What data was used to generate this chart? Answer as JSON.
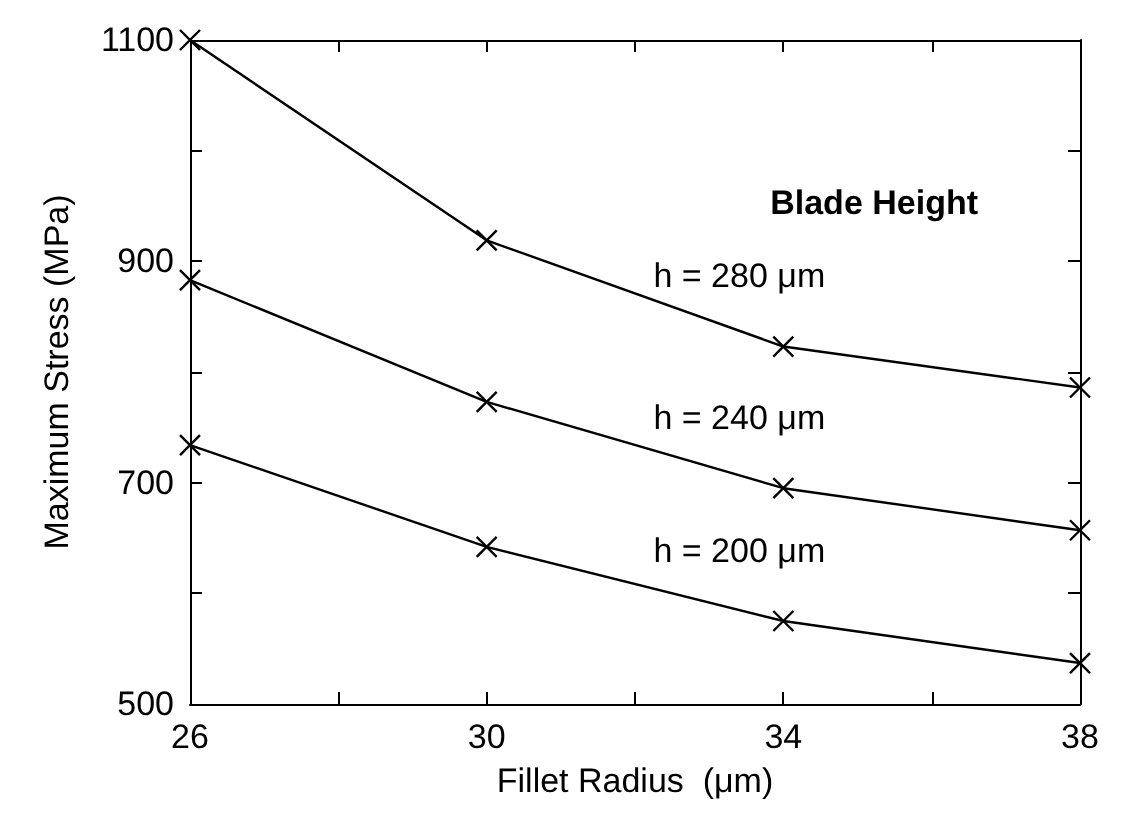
{
  "chart_data": {
    "type": "line",
    "xlabel": "Fillet Radius  (μm)",
    "ylabel": "Maximum Stress (MPa)",
    "legend_title": "Blade Height",
    "x": [
      26,
      30,
      34,
      38
    ],
    "series": [
      {
        "name": "h = 280 μm",
        "color": "#000000",
        "marker": "cross",
        "values": [
          1100,
          919,
          823,
          786
        ]
      },
      {
        "name": "h = 240 μm",
        "color": "#000000",
        "marker": "cross",
        "values": [
          883,
          773,
          695,
          657
        ]
      },
      {
        "name": "h = 200 μm",
        "color": "#000000",
        "marker": "cross",
        "values": [
          734,
          642,
          575,
          537
        ]
      }
    ],
    "xlim": [
      26,
      38
    ],
    "xticks": [
      26,
      {
        "value": 28,
        "label": null
      },
      30,
      {
        "value": 32,
        "label": null
      },
      34,
      {
        "value": 36,
        "label": null
      },
      38
    ],
    "ylim": [
      500,
      1100
    ],
    "yticks": [
      500,
      {
        "value": 600,
        "label": null
      },
      700,
      {
        "value": 800,
        "label": null
      },
      900,
      {
        "value": 1000,
        "label": null
      },
      1100
    ],
    "grid": false,
    "legend": false,
    "line_style": "solid"
  }
}
